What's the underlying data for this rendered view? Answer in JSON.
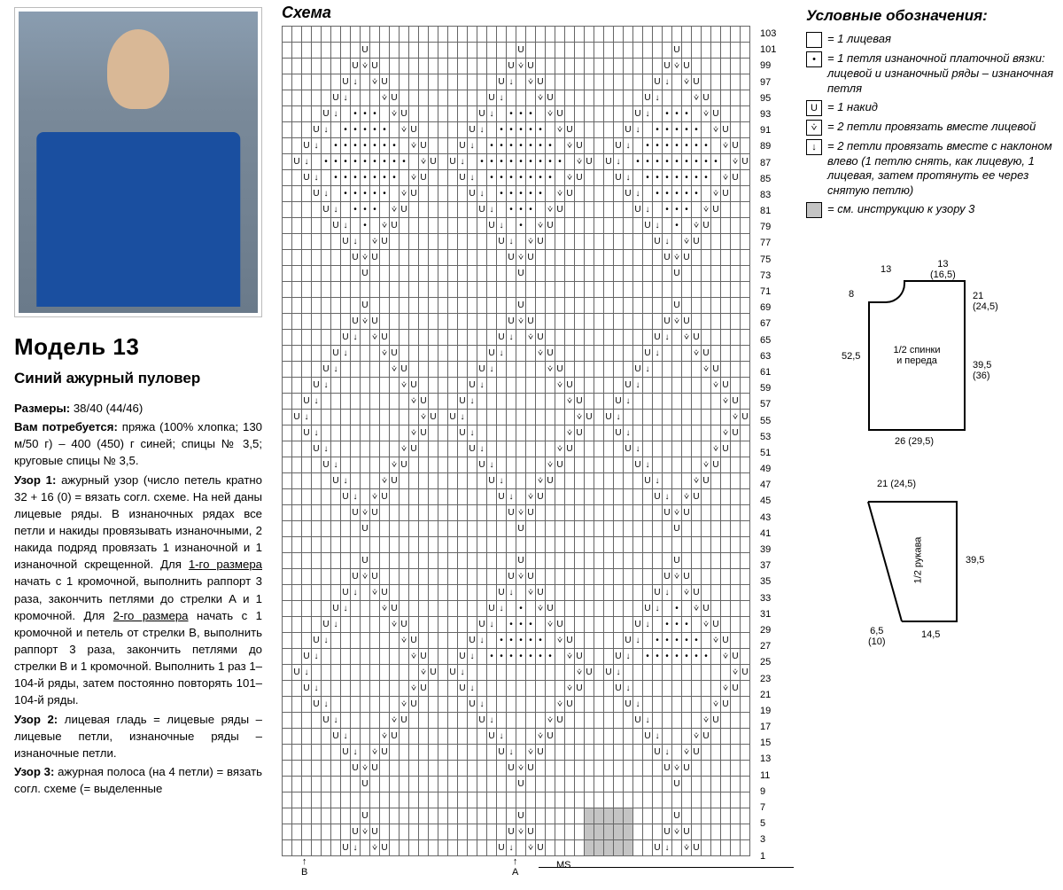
{
  "left": {
    "model_heading": "Модель 13",
    "subtitle": "Синий ажурный пуловер",
    "sizes_label": "Размеры:",
    "sizes_value": "38/40 (44/46)",
    "need_label": "Вам потребуется:",
    "need_value": "пряжа (100% хлоп­ка; 130 м/50 г) – 400 (450) г синей; спицы № 3,5; круговые спицы № 3,5.",
    "uzor1_label": "Узор 1:",
    "uzor1_value": "ажурный узор (число петель кратно 32 + 16 (0) = вязать согл. схеме. На ней даны лицевые ряды. В изнаноч­ных рядах все петли и накиды провя­зывать изнаночными, 2 накида подряд провязать 1 изнаночной и 1 изнаночной скрещенной. Для ",
    "size1_u": "1-го размера",
    "uzor1_mid": " начать с 1 кромочной, выполнить раппорт 3 раза, закончить петлями до стрелки А и 1 кромочной. Для ",
    "size2_u": "2-го размера",
    "uzor1_end": " начать с 1 кромочной и петель от стрелки В, выполнить раппорт 3 раза, закончить петлями до стрелки В и 1 кромочной. Выполнить 1 раз 1–104-й ряды, затем постоянно повторять 101–104-й ряды.",
    "uzor2_label": "Узор 2:",
    "uzor2_value": "лицевая гладь = лицевые ряды – лицевые петли, изнаночные ряды – изнаночные петли.",
    "uzor3_label": "Узор 3:",
    "uzor3_value": "ажурная полоса (на 4 петли) = вязать согл. схеме (= выделенные"
  },
  "schema": {
    "title": "Схема",
    "cols": 48,
    "row_labels": [
      103,
      101,
      99,
      97,
      95,
      93,
      91,
      89,
      87,
      85,
      83,
      81,
      79,
      77,
      75,
      73,
      71,
      69,
      67,
      65,
      63,
      61,
      59,
      57,
      55,
      53,
      51,
      49,
      47,
      45,
      43,
      41,
      39,
      37,
      35,
      33,
      31,
      29,
      27,
      25,
      23,
      21,
      19,
      17,
      15,
      13,
      11,
      9,
      7,
      5,
      3,
      1
    ],
    "symbols": [
      "↓",
      "U",
      "⩒",
      "•"
    ],
    "arrow_b": "B",
    "arrow_a": "A",
    "ms": "MS",
    "cell_border": "#666666",
    "gray_fill": "#c4c4c4"
  },
  "legend": {
    "title": "Условные обозначения:",
    "items": [
      {
        "sym": "",
        "text": "= 1 лицевая"
      },
      {
        "sym": "•",
        "text": "= 1 петля изнаночной платоч­ной вязки: лицевой и изнаночный ряды – изнаночная петля"
      },
      {
        "sym": "U",
        "text": "= 1 накид"
      },
      {
        "sym": "⩒",
        "text": "= 2 петли провязать вместе лицевой"
      },
      {
        "sym": "↓",
        "text": "= 2 петли провязать вместе с наклоном влево (1 петлю снять, как лицевую, 1 лицевая, затем протянуть ее через снятую петлю)"
      },
      {
        "sym": "",
        "gray": true,
        "text": "= см. инструкцию к узору 3"
      }
    ]
  },
  "schematic1": {
    "top_left": "13",
    "top_right": "13\n(16,5)",
    "left_top": "8",
    "left_mid": "52,5",
    "right_top": "21\n(24,5)",
    "right_mid": "39,5\n(36)",
    "bottom": "26 (29,5)",
    "center": "1/2 спинки\nи переда"
  },
  "schematic2": {
    "top": "21 (24,5)",
    "center": "1/2 рукава",
    "right": "39,5",
    "bottom_left": "6,5\n(10)",
    "bottom_right": "14,5"
  }
}
